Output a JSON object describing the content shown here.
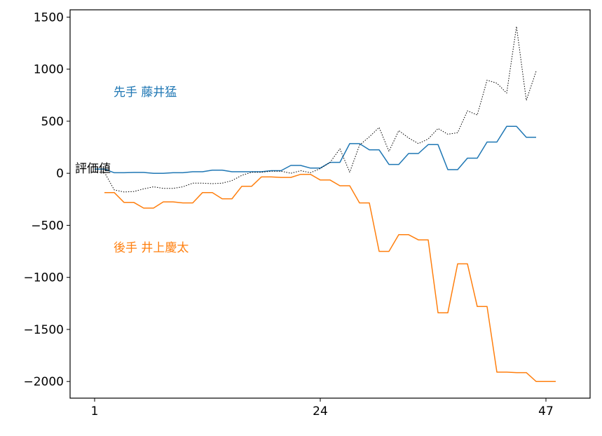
{
  "chart_data": {
    "type": "line",
    "title": "",
    "xlabel": "",
    "ylabel": "",
    "xlim": [
      -1.5,
      51.5
    ],
    "ylim": [
      -2160,
      1570
    ],
    "x_ticks": [
      1,
      24,
      47
    ],
    "y_ticks": [
      1500,
      1000,
      500,
      0,
      -500,
      -1000,
      -1500,
      -2000
    ],
    "y_tick_labels": [
      "1500",
      "1000",
      "500",
      "0",
      "−500",
      "−1000",
      "−1500",
      "−2000"
    ],
    "grid": false,
    "annotations": {
      "sente": "先手 藤井猛",
      "gote": "後手 井上慶太",
      "eval": "評価値"
    },
    "series": [
      {
        "role": "sente",
        "color": "#1f77b4",
        "style": "solid",
        "x": [
          1,
          2,
          3,
          4,
          5,
          6,
          7,
          8,
          9,
          10,
          11,
          12,
          13,
          14,
          15,
          16,
          17,
          18,
          19,
          20,
          21,
          22,
          23,
          24,
          25,
          26,
          27,
          28,
          29,
          30,
          31,
          32,
          33,
          34,
          35,
          36,
          37,
          38,
          39,
          40,
          41,
          42,
          43,
          44,
          45,
          46
        ],
        "values": [
          40,
          40,
          5,
          5,
          8,
          8,
          0,
          0,
          5,
          5,
          15,
          15,
          30,
          30,
          15,
          15,
          15,
          15,
          25,
          25,
          75,
          75,
          50,
          50,
          105,
          105,
          285,
          285,
          225,
          225,
          85,
          85,
          190,
          190,
          275,
          275,
          35,
          35,
          145,
          145,
          300,
          300,
          450,
          450,
          345,
          345
        ]
      },
      {
        "role": "gote",
        "color": "#ff7f0e",
        "style": "solid",
        "x": [
          2,
          3,
          4,
          5,
          6,
          7,
          8,
          9,
          10,
          11,
          12,
          13,
          14,
          15,
          16,
          17,
          18,
          19,
          20,
          21,
          22,
          23,
          24,
          25,
          26,
          27,
          28,
          29,
          30,
          31,
          32,
          33,
          34,
          35,
          36,
          37,
          38,
          39,
          40,
          41,
          42,
          43,
          44,
          45,
          46,
          47,
          48
        ],
        "values": [
          -185,
          -185,
          -280,
          -280,
          -335,
          -335,
          -275,
          -275,
          -285,
          -285,
          -185,
          -185,
          -245,
          -245,
          -125,
          -125,
          -35,
          -35,
          -40,
          -40,
          -10,
          -10,
          -65,
          -65,
          -120,
          -120,
          -285,
          -285,
          -750,
          -750,
          -590,
          -590,
          -640,
          -640,
          -1340,
          -1340,
          -870,
          -870,
          -1280,
          -1280,
          -1910,
          -1910,
          -1915,
          -1915,
          -2000,
          -2000,
          -2000
        ]
      },
      {
        "role": "eval",
        "color": "#000000",
        "style": "dotted",
        "x": [
          1,
          2,
          3,
          4,
          5,
          6,
          7,
          8,
          9,
          10,
          11,
          12,
          13,
          14,
          15,
          16,
          17,
          18,
          19,
          20,
          21,
          22,
          23,
          24,
          25,
          26,
          27,
          28,
          29,
          30,
          31,
          32,
          33,
          34,
          35,
          36,
          37,
          38,
          39,
          40,
          41,
          42,
          43,
          44,
          45,
          46
        ],
        "values": [
          10,
          10,
          -160,
          -180,
          -175,
          -150,
          -130,
          -145,
          -145,
          -130,
          -95,
          -95,
          -100,
          -95,
          -70,
          -20,
          10,
          10,
          20,
          20,
          0,
          25,
          5,
          45,
          105,
          235,
          10,
          270,
          350,
          440,
          210,
          410,
          340,
          285,
          330,
          430,
          375,
          390,
          600,
          560,
          895,
          865,
          770,
          1410,
          700,
          980
        ]
      }
    ]
  }
}
